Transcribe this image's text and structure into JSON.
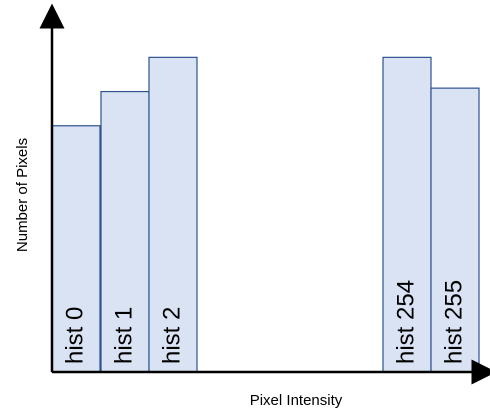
{
  "chart_data": {
    "type": "bar",
    "title": "",
    "xlabel": "Pixel Intensity",
    "ylabel": "Number of Pixels",
    "categories": [
      "hist 0",
      "hist 1",
      "hist 2",
      "hist 254",
      "hist 255"
    ],
    "values": [
      72,
      82,
      92,
      92,
      83
    ],
    "ylim": [
      0,
      100
    ],
    "grid": false,
    "legend": "none",
    "colors": {
      "bar_fill": "#dae3f3",
      "bar_stroke": "#2f528f",
      "axis": "#000000"
    }
  }
}
